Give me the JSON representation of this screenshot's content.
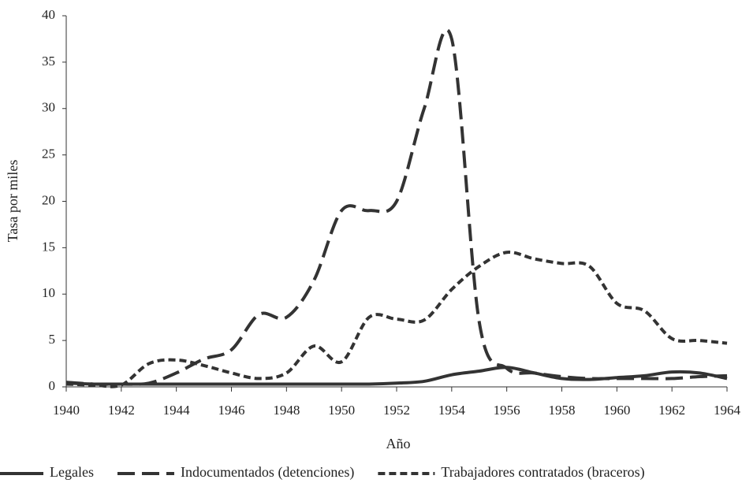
{
  "chart_data": {
    "type": "line",
    "x_label": "Año",
    "y_label": "Tasa por miles",
    "x": [
      1940,
      1941,
      1942,
      1943,
      1944,
      1945,
      1946,
      1947,
      1948,
      1949,
      1950,
      1951,
      1952,
      1953,
      1954,
      1955,
      1956,
      1957,
      1958,
      1959,
      1960,
      1961,
      1962,
      1963,
      1964
    ],
    "series": [
      {
        "name": "Legales",
        "color": "#333333",
        "line_style": "solid",
        "values": [
          0.4,
          0.3,
          0.3,
          0.3,
          0.3,
          0.3,
          0.3,
          0.3,
          0.3,
          0.3,
          0.3,
          0.3,
          0.4,
          0.6,
          1.3,
          1.7,
          2.1,
          1.5,
          0.9,
          0.8,
          1.0,
          1.2,
          1.6,
          1.5,
          0.9
        ]
      },
      {
        "name": "Indocumentados (detenciones)",
        "color": "#333333",
        "line_style": "dashed",
        "values": [
          0.5,
          0.3,
          0.3,
          0.4,
          1.5,
          3.0,
          4.0,
          7.8,
          7.5,
          11.5,
          19.0,
          19.0,
          20.0,
          30.0,
          37.5,
          7.0,
          2.0,
          1.5,
          1.1,
          0.9,
          0.9,
          0.9,
          0.9,
          1.1,
          1.2
        ]
      },
      {
        "name": "Trabajadores contratados (braceros)",
        "color": "#333333",
        "line_style": "dotted",
        "values": [
          0.3,
          0.2,
          0.2,
          2.5,
          2.9,
          2.3,
          1.5,
          0.9,
          1.5,
          4.4,
          2.7,
          7.5,
          7.3,
          7.2,
          10.5,
          13.0,
          14.5,
          13.8,
          13.3,
          13.0,
          9.0,
          8.2,
          5.2,
          5.0,
          4.7
        ]
      }
    ],
    "xlim": [
      1940,
      1964
    ],
    "xticks": [
      1940,
      1942,
      1944,
      1946,
      1948,
      1950,
      1952,
      1954,
      1956,
      1958,
      1960,
      1962,
      1964
    ],
    "ylim": [
      0,
      40
    ],
    "yticks": [
      0,
      5,
      10,
      15,
      20,
      25,
      30,
      35,
      40
    ]
  }
}
